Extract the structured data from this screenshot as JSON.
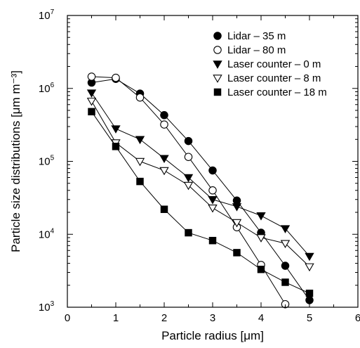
{
  "chart_data": {
    "type": "scatter",
    "xlabel": "Particle radius [μm]",
    "ylabel": "Particle size distributions [μm m⁻³]",
    "xlim": [
      0,
      6
    ],
    "ylim": [
      1000,
      10000000
    ],
    "yscale": "log",
    "x_ticks": [
      "0",
      "1",
      "2",
      "3",
      "4",
      "5",
      "6"
    ],
    "y_ticks": [
      {
        "base": "10",
        "exp": "3"
      },
      {
        "base": "10",
        "exp": "4"
      },
      {
        "base": "10",
        "exp": "5"
      },
      {
        "base": "10",
        "exp": "6"
      },
      {
        "base": "10",
        "exp": "7"
      }
    ],
    "legend_position": "top-right",
    "grid": false,
    "series": [
      {
        "name": "Lidar – 35 m",
        "marker": "circle-filled",
        "x": [
          0.5,
          1.0,
          1.5,
          2.0,
          2.5,
          3.0,
          3.5,
          4.0,
          4.5,
          5.0
        ],
        "y": [
          1200000,
          1350000,
          850000,
          430000,
          190000,
          75000,
          29000,
          10500,
          3700,
          1250
        ]
      },
      {
        "name": "Lidar – 80 m",
        "marker": "circle-open",
        "x": [
          0.5,
          1.0,
          1.5,
          2.0,
          2.5,
          3.0,
          3.5,
          4.0,
          4.5
        ],
        "y": [
          1450000,
          1400000,
          750000,
          320000,
          115000,
          40000,
          12500,
          3800,
          1100
        ]
      },
      {
        "name": "Laser counter – 0 m",
        "marker": "triangle-down-filled",
        "x": [
          0.5,
          1.0,
          1.5,
          2.0,
          2.5,
          3.0,
          3.5,
          4.0,
          4.5,
          5.0
        ],
        "y": [
          870000,
          280000,
          200000,
          110000,
          60000,
          30000,
          24000,
          18000,
          12000,
          5000
        ]
      },
      {
        "name": "Laser counter – 8 m",
        "marker": "triangle-down-open",
        "x": [
          0.5,
          1.0,
          1.5,
          2.0,
          2.5,
          3.0,
          3.5,
          4.0,
          4.5,
          5.0
        ],
        "y": [
          670000,
          180000,
          100000,
          75000,
          47000,
          23000,
          14500,
          9000,
          7500,
          3600
        ]
      },
      {
        "name": "Laser counter – 18 m",
        "marker": "square-filled",
        "x": [
          0.5,
          1.0,
          1.5,
          2.0,
          2.5,
          3.0,
          3.5,
          4.0,
          4.5,
          5.0
        ],
        "y": [
          480000,
          160000,
          53000,
          22000,
          10500,
          8200,
          5600,
          3300,
          2200,
          1550
        ]
      }
    ]
  }
}
